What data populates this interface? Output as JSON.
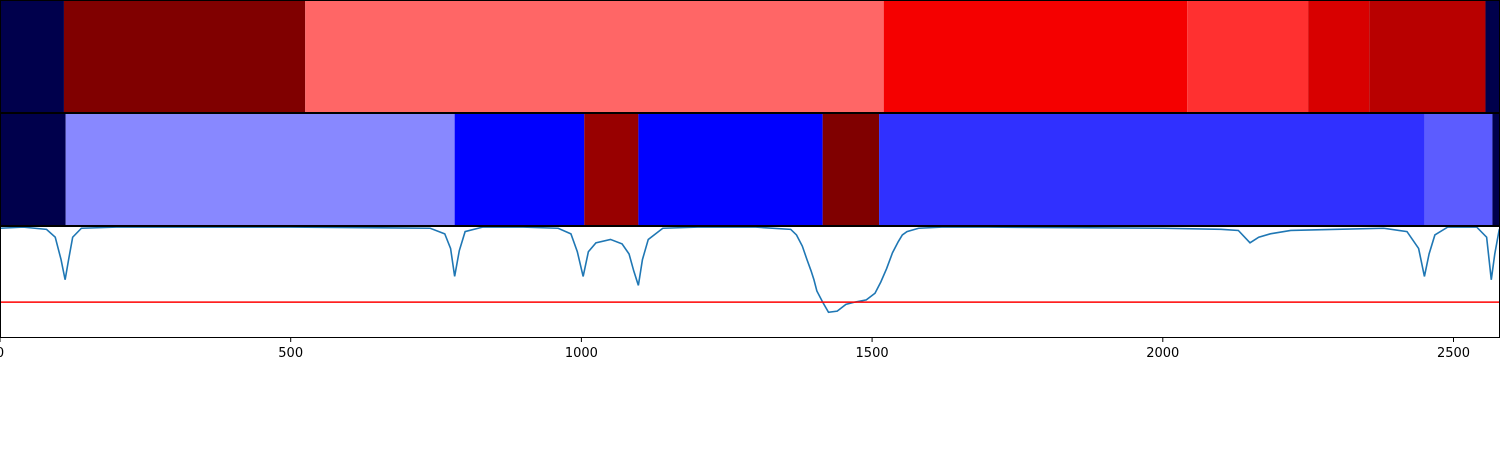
{
  "chart_data": {
    "type": "heatmap",
    "x_range": [
      0,
      2580
    ],
    "x_ticks": [
      0,
      500,
      1000,
      1500,
      2000,
      2500
    ],
    "panels": [
      {
        "kind": "segments",
        "segments": [
          {
            "start": 0,
            "end": 110,
            "color": "#00004c"
          },
          {
            "start": 110,
            "end": 525,
            "color": "#800000"
          },
          {
            "start": 525,
            "end": 1520,
            "color": "#ff6666"
          },
          {
            "start": 1520,
            "end": 2042,
            "color": "#f50000"
          },
          {
            "start": 2042,
            "end": 2250,
            "color": "#ff3030"
          },
          {
            "start": 2250,
            "end": 2355,
            "color": "#d80000"
          },
          {
            "start": 2355,
            "end": 2555,
            "color": "#b80000"
          },
          {
            "start": 2555,
            "end": 2580,
            "color": "#00004c"
          }
        ]
      },
      {
        "kind": "segments",
        "segments": [
          {
            "start": 0,
            "end": 113,
            "color": "#00004c"
          },
          {
            "start": 113,
            "end": 782,
            "color": "#8888ff"
          },
          {
            "start": 782,
            "end": 1005,
            "color": "#0000ff"
          },
          {
            "start": 1005,
            "end": 1098,
            "color": "#980000"
          },
          {
            "start": 1098,
            "end": 1415,
            "color": "#0000ff"
          },
          {
            "start": 1415,
            "end": 1512,
            "color": "#800000"
          },
          {
            "start": 1512,
            "end": 2450,
            "color": "#3030ff"
          },
          {
            "start": 2450,
            "end": 2567,
            "color": "#5c5cff"
          },
          {
            "start": 2567,
            "end": 2580,
            "color": "#00004c"
          }
        ]
      },
      {
        "kind": "line",
        "y_range": [
          0,
          1
        ],
        "threshold": 0.32,
        "line_color": "#1f77b4",
        "threshold_color": "#ff0000",
        "x": [
          0,
          40,
          80,
          95,
          105,
          112,
          118,
          125,
          140,
          200,
          500,
          740,
          765,
          775,
          782,
          790,
          800,
          830,
          900,
          960,
          982,
          993,
          1003,
          1012,
          1025,
          1050,
          1070,
          1082,
          1090,
          1098,
          1105,
          1115,
          1140,
          1200,
          1300,
          1360,
          1370,
          1380,
          1388,
          1395,
          1400,
          1405,
          1415,
          1425,
          1440,
          1455,
          1470,
          1490,
          1505,
          1515,
          1525,
          1535,
          1545,
          1552,
          1560,
          1580,
          1620,
          1700,
          2000,
          2100,
          2130,
          2150,
          2165,
          2185,
          2220,
          2300,
          2380,
          2420,
          2440,
          2450,
          2458,
          2468,
          2490,
          2540,
          2557,
          2565,
          2571,
          2578,
          2580
        ],
        "y": [
          0.98,
          0.99,
          0.97,
          0.9,
          0.7,
          0.52,
          0.7,
          0.9,
          0.98,
          0.99,
          0.99,
          0.98,
          0.93,
          0.8,
          0.55,
          0.78,
          0.95,
          0.99,
          0.99,
          0.98,
          0.93,
          0.77,
          0.55,
          0.77,
          0.85,
          0.88,
          0.84,
          0.75,
          0.6,
          0.47,
          0.7,
          0.88,
          0.98,
          0.99,
          0.99,
          0.97,
          0.92,
          0.82,
          0.7,
          0.6,
          0.52,
          0.42,
          0.32,
          0.23,
          0.24,
          0.3,
          0.32,
          0.34,
          0.4,
          0.5,
          0.62,
          0.76,
          0.86,
          0.92,
          0.95,
          0.98,
          0.99,
          0.99,
          0.98,
          0.97,
          0.96,
          0.85,
          0.9,
          0.93,
          0.96,
          0.97,
          0.98,
          0.95,
          0.8,
          0.55,
          0.75,
          0.92,
          0.99,
          0.99,
          0.9,
          0.52,
          0.75,
          0.95,
          0.92
        ]
      }
    ],
    "tick_color": "#000000",
    "axis_color": "#000000",
    "background": "#ffffff"
  }
}
